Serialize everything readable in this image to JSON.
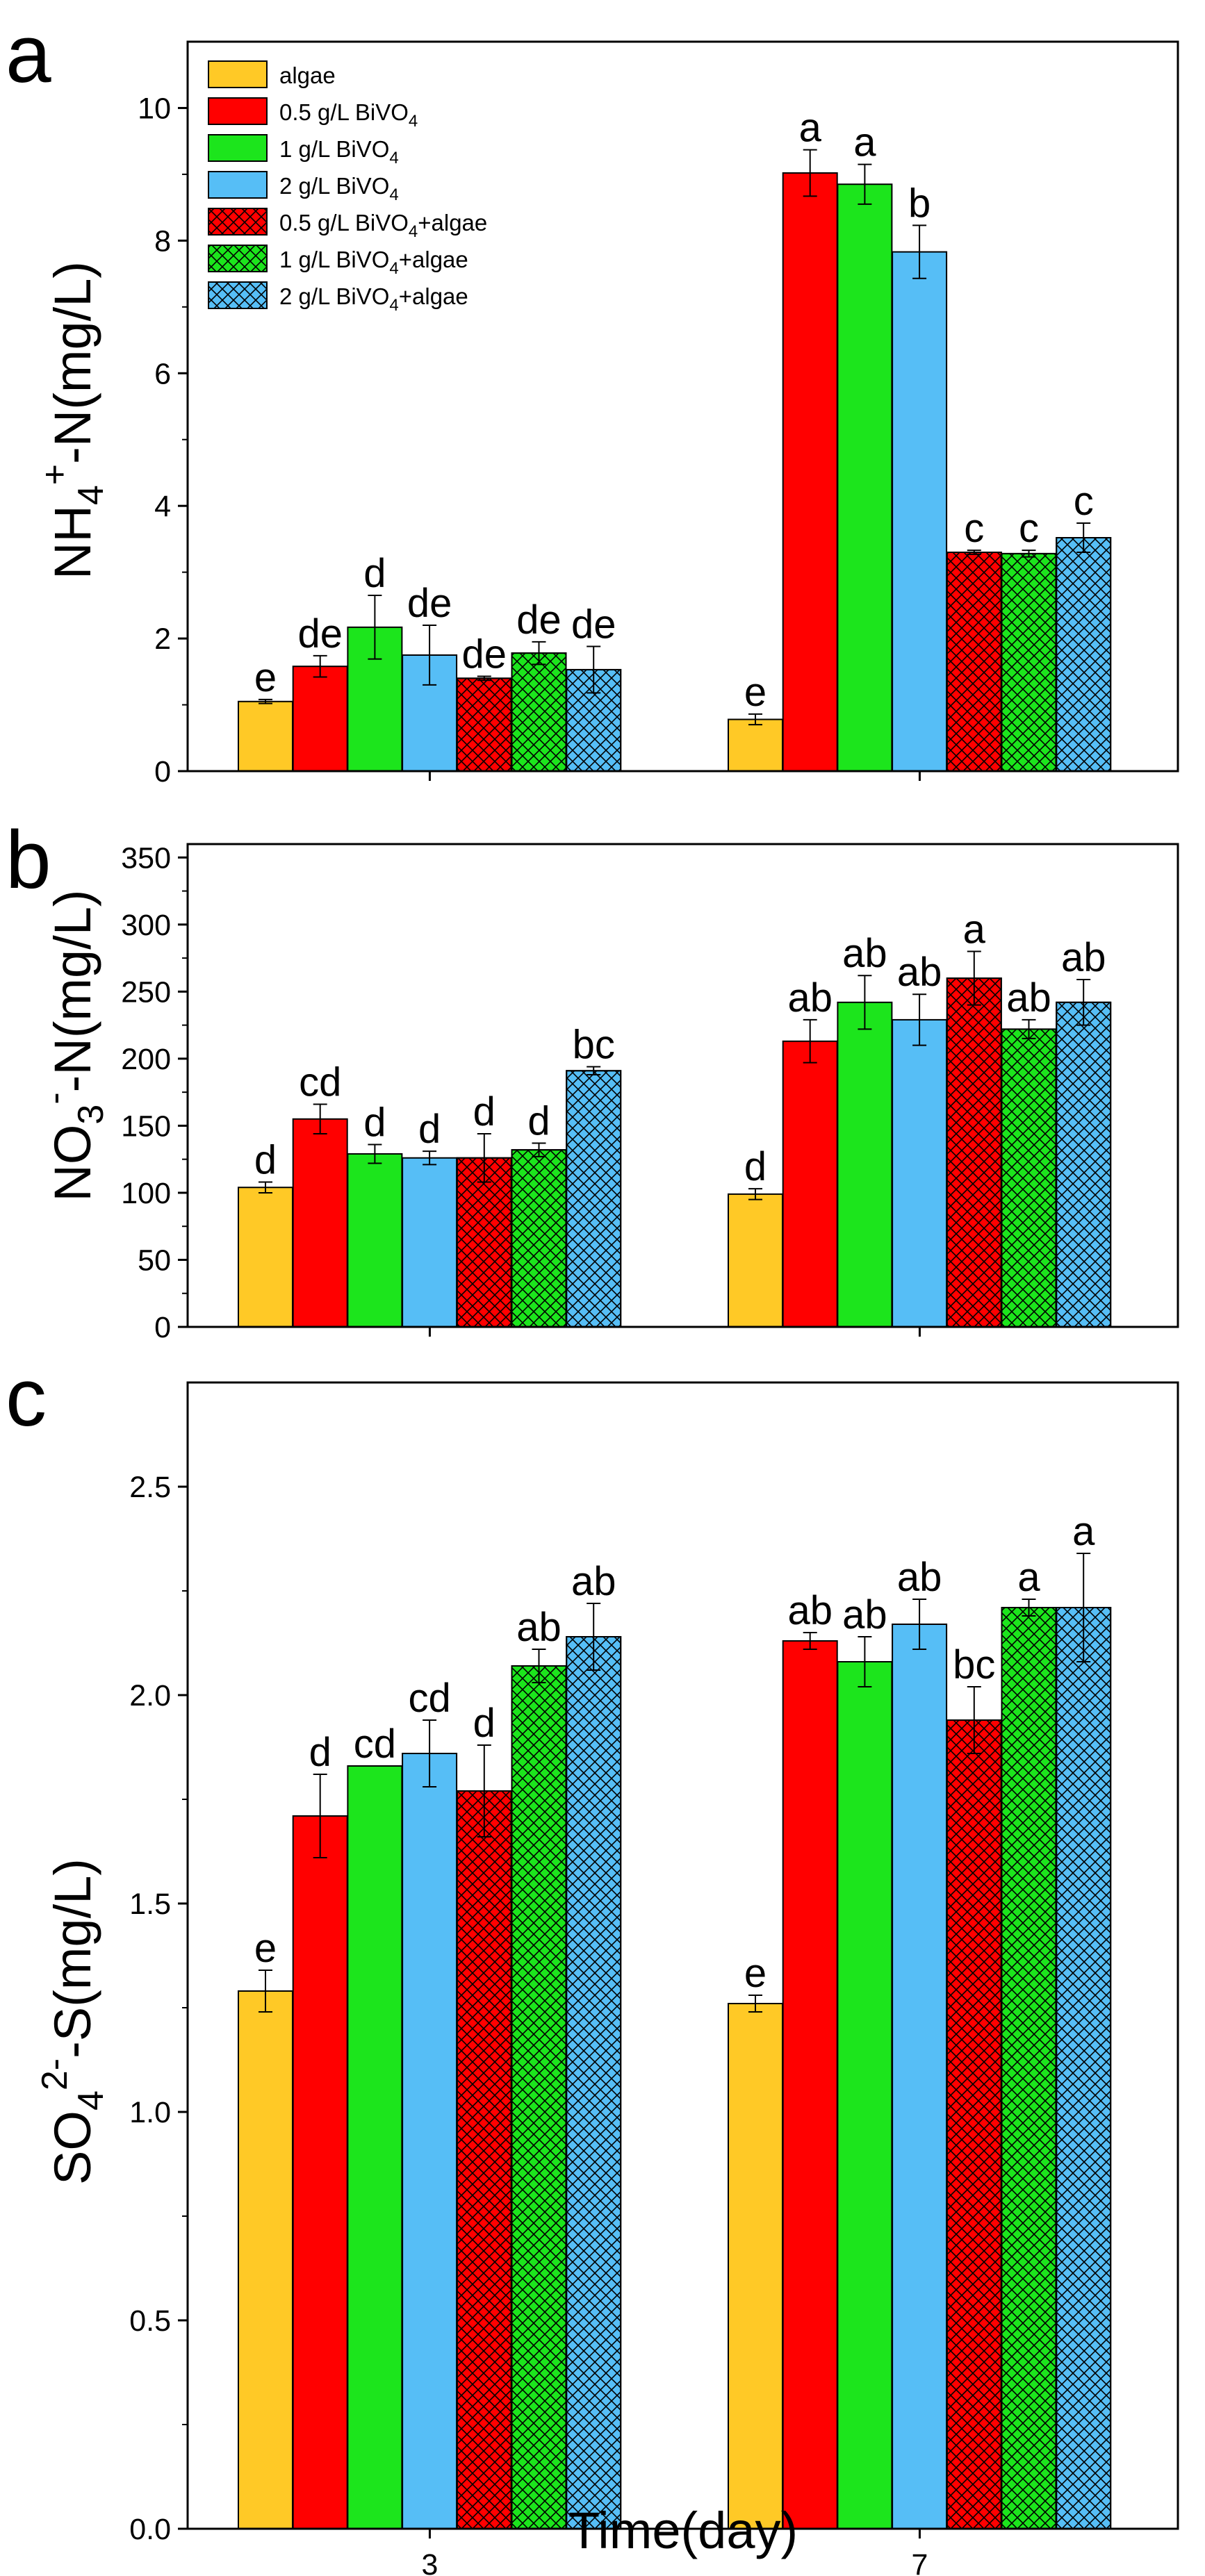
{
  "figure": {
    "colors": {
      "algae": "#FFC926",
      "red": "#FF0000",
      "green": "#1CE51C",
      "blue": "#56BEF6",
      "axis": "#000000",
      "hatch": "#000000"
    },
    "x_label": "Time(day)",
    "categories": [
      "3",
      "7"
    ]
  },
  "legend": {
    "entries": [
      {
        "parts": [
          "algae"
        ],
        "color": "#FFC926",
        "hatched": false
      },
      {
        "parts": [
          "0.5 g/L BiVO",
          "4"
        ],
        "color": "#FF0000",
        "hatched": false
      },
      {
        "parts": [
          "1 g/L BiVO",
          "4"
        ],
        "color": "#1CE51C",
        "hatched": false
      },
      {
        "parts": [
          "2 g/L BiVO",
          "4"
        ],
        "color": "#56BEF6",
        "hatched": false
      },
      {
        "parts": [
          "0.5 g/L BiVO",
          "4",
          "+algae"
        ],
        "color": "#FF0000",
        "hatched": true
      },
      {
        "parts": [
          "1 g/L BiVO",
          "4",
          "+algae"
        ],
        "color": "#1CE51C",
        "hatched": true
      },
      {
        "parts": [
          "2 g/L BiVO",
          "4",
          "+algae"
        ],
        "color": "#56BEF6",
        "hatched": true
      }
    ]
  },
  "chart_data": [
    {
      "type": "bar",
      "panel_label": "a",
      "ylabel_parts": [
        "NH",
        "4",
        "+",
        "-N(mg/L)"
      ],
      "xlabel": "Time(day)",
      "categories": [
        "3",
        "7"
      ],
      "ylim": [
        0,
        11
      ],
      "yticks": [
        0,
        2,
        4,
        6,
        8,
        10
      ],
      "ytick_labels": [
        "0",
        "2",
        "4",
        "6",
        "8",
        "10"
      ],
      "series": [
        {
          "name": "algae",
          "values": [
            1.05,
            0.78
          ],
          "errors": [
            0.03,
            0.08
          ],
          "letters": [
            "e",
            "e"
          ]
        },
        {
          "name": "0.5 g/L BiVO4",
          "values": [
            1.58,
            9.02
          ],
          "errors": [
            0.16,
            0.35
          ],
          "letters": [
            "de",
            "a"
          ]
        },
        {
          "name": "1 g/L BiVO4",
          "values": [
            2.17,
            8.85
          ],
          "errors": [
            0.48,
            0.3
          ],
          "letters": [
            "d",
            "a"
          ]
        },
        {
          "name": "2 g/L BiVO4",
          "values": [
            1.75,
            7.83
          ],
          "errors": [
            0.45,
            0.4
          ],
          "letters": [
            "de",
            "b"
          ]
        },
        {
          "name": "0.5 g/L BiVO4+algae",
          "values": [
            1.4,
            3.3
          ],
          "errors": [
            0.03,
            0.03
          ],
          "letters": [
            "de",
            "c"
          ]
        },
        {
          "name": "1 g/L BiVO4+algae",
          "values": [
            1.78,
            3.28
          ],
          "errors": [
            0.17,
            0.05
          ],
          "letters": [
            "de",
            "c"
          ]
        },
        {
          "name": "2 g/L BiVO4+algae",
          "values": [
            1.53,
            3.52
          ],
          "errors": [
            0.35,
            0.22
          ],
          "letters": [
            "de",
            "c"
          ]
        }
      ]
    },
    {
      "type": "bar",
      "panel_label": "b",
      "ylabel_parts": [
        "NO",
        "3",
        "-",
        "-N(mg/L)"
      ],
      "xlabel": "Time(day)",
      "categories": [
        "3",
        "7"
      ],
      "ylim": [
        0,
        360
      ],
      "yticks": [
        0,
        50,
        100,
        150,
        200,
        250,
        300,
        350
      ],
      "ytick_labels": [
        "0",
        "50",
        "100",
        "150",
        "200",
        "250",
        "300",
        "350"
      ],
      "series": [
        {
          "name": "algae",
          "values": [
            104,
            99
          ],
          "errors": [
            4,
            4
          ],
          "letters": [
            "d",
            "d"
          ]
        },
        {
          "name": "0.5 g/L BiVO4",
          "values": [
            155,
            213
          ],
          "errors": [
            11,
            16
          ],
          "letters": [
            "cd",
            "ab"
          ]
        },
        {
          "name": "1 g/L BiVO4",
          "values": [
            129,
            242
          ],
          "errors": [
            7,
            20
          ],
          "letters": [
            "d",
            "ab"
          ]
        },
        {
          "name": "2 g/L BiVO4",
          "values": [
            126,
            229
          ],
          "errors": [
            5,
            19
          ],
          "letters": [
            "d",
            "ab"
          ]
        },
        {
          "name": "0.5 g/L BiVO4+algae",
          "values": [
            126,
            260
          ],
          "errors": [
            18,
            20
          ],
          "letters": [
            "d",
            "a"
          ]
        },
        {
          "name": "1 g/L BiVO4+algae",
          "values": [
            132,
            222
          ],
          "errors": [
            5,
            7
          ],
          "letters": [
            "d",
            "ab"
          ]
        },
        {
          "name": "2 g/L BiVO4+algae",
          "values": [
            191,
            242
          ],
          "errors": [
            3,
            17
          ],
          "letters": [
            "bc",
            "ab"
          ]
        }
      ]
    },
    {
      "type": "bar",
      "panel_label": "c",
      "ylabel_parts": [
        "SO",
        "4",
        "2-",
        "-S(mg/L)"
      ],
      "xlabel": "Time(day)",
      "categories": [
        "3",
        "7"
      ],
      "ylim": [
        0,
        2.75
      ],
      "yticks": [
        0,
        0.5,
        1.0,
        1.5,
        2.0,
        2.5
      ],
      "ytick_labels": [
        "0.0",
        "0.5",
        "1.0",
        "1.5",
        "2.0",
        "2.5"
      ],
      "series": [
        {
          "name": "algae",
          "values": [
            1.29,
            1.26
          ],
          "errors": [
            0.05,
            0.02
          ],
          "letters": [
            "e",
            "e"
          ]
        },
        {
          "name": "0.5 g/L BiVO4",
          "values": [
            1.71,
            2.13
          ],
          "errors": [
            0.1,
            0.02
          ],
          "letters": [
            "d",
            "ab"
          ]
        },
        {
          "name": "1 g/L BiVO4",
          "values": [
            1.83,
            2.08
          ],
          "errors": [
            0.0,
            0.06
          ],
          "letters": [
            "cd",
            "ab"
          ]
        },
        {
          "name": "2 g/L BiVO4",
          "values": [
            1.86,
            2.17
          ],
          "errors": [
            0.08,
            0.06
          ],
          "letters": [
            "cd",
            "ab"
          ]
        },
        {
          "name": "0.5 g/L BiVO4+algae",
          "values": [
            1.77,
            1.94
          ],
          "errors": [
            0.11,
            0.08
          ],
          "letters": [
            "d",
            "bc"
          ]
        },
        {
          "name": "1 g/L BiVO4+algae",
          "values": [
            2.07,
            2.21
          ],
          "errors": [
            0.04,
            0.02
          ],
          "letters": [
            "ab",
            "a"
          ]
        },
        {
          "name": "2 g/L BiVO4+algae",
          "values": [
            2.14,
            2.21
          ],
          "errors": [
            0.08,
            0.13
          ],
          "letters": [
            "ab",
            "a"
          ]
        }
      ]
    }
  ]
}
